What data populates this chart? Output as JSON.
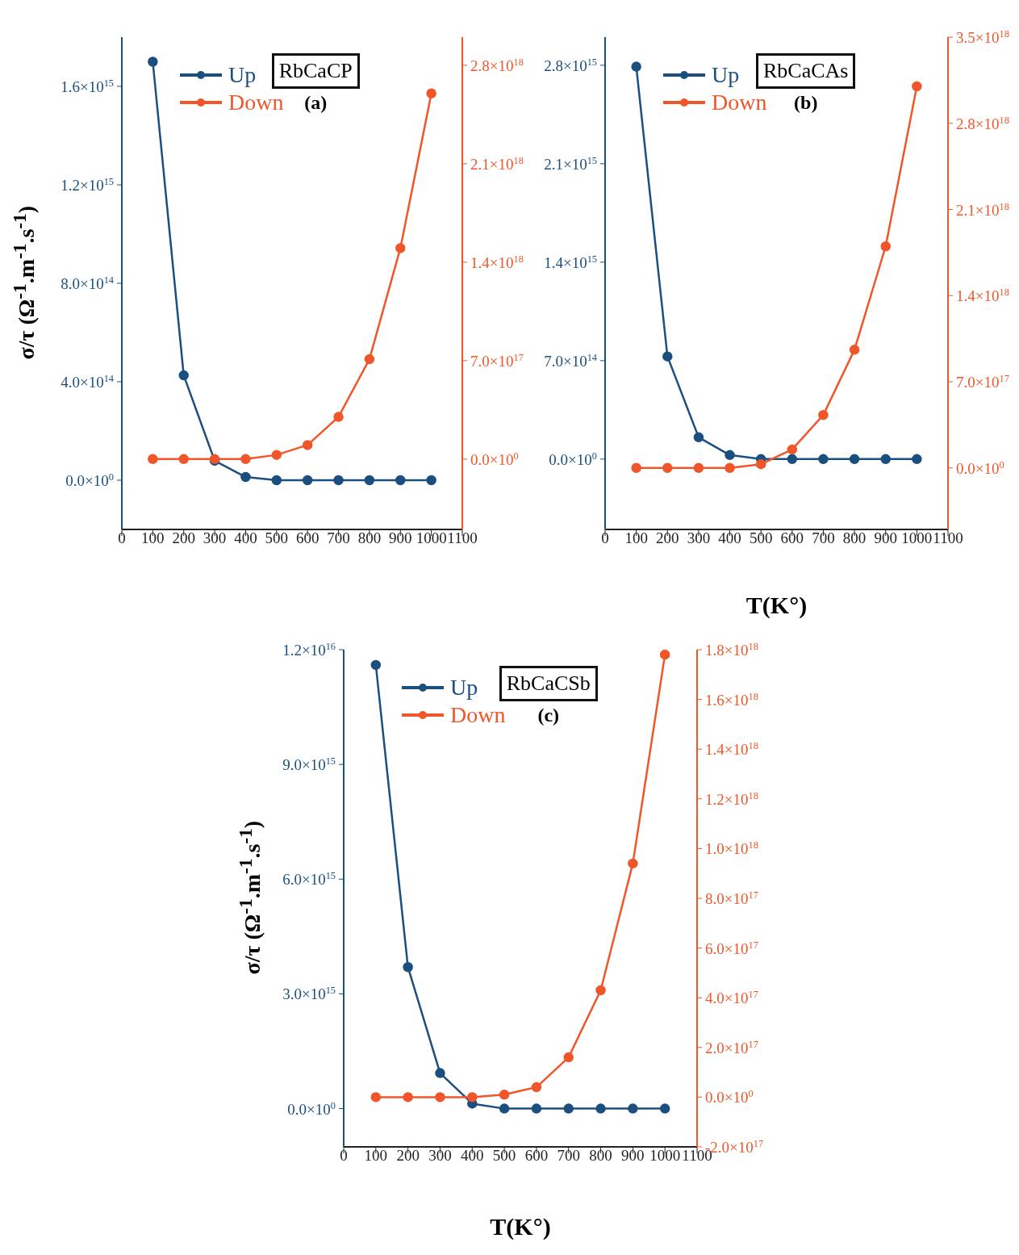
{
  "chart_data": [
    {
      "type": "line",
      "xlabel": null,
      "ylabel": "σ/τ (Ω$^{-1}$.m$^{-1}$.s$^{-1}$)",
      "annotations": [
        "RbCaCP",
        "(a)"
      ],
      "legend": "top left",
      "marker": "circle",
      "grid": false,
      "x": [
        100,
        200,
        300,
        400,
        500,
        600,
        700,
        800,
        900,
        1000
      ],
      "xlim": [
        0,
        1100
      ],
      "xticks": [
        0,
        100,
        200,
        300,
        400,
        500,
        600,
        700,
        800,
        900,
        1000,
        1100
      ],
      "ylim": [
        -200000000000000.0,
        1800000000000000.0
      ],
      "yticks": [
        {
          "value": 0,
          "label": "0.0×10$^{0}$"
        },
        {
          "value": 400000000000000.0,
          "label": "4.0×10$^{14}$"
        },
        {
          "value": 800000000000000.0,
          "label": "8.0×10$^{14}$"
        },
        {
          "value": 1200000000000000.0,
          "label": "1.2×10$^{15}$"
        },
        {
          "value": 1600000000000000.0,
          "label": "1.6×10$^{15}$"
        }
      ],
      "y2lim": [
        -5e+17,
        3e+18
      ],
      "y2ticks": [
        {
          "value": 0,
          "label": "0.0×10$^{0}$"
        },
        {
          "value": 7e+17,
          "label": "7.0×10$^{17}$"
        },
        {
          "value": 1.4e+18,
          "label": "1.4×10$^{18}$"
        },
        {
          "value": 2.1e+18,
          "label": "2.1×10$^{18}$"
        },
        {
          "value": 2.8e+18,
          "label": "2.8×10$^{18}$"
        }
      ],
      "series": [
        {
          "name": "Up",
          "color": "#1b4f80",
          "values": [
            1700000000000000.0,
            426000000000000.0,
            79000000000000.0,
            13000000000000.0,
            0,
            0,
            0,
            0,
            0,
            0
          ]
        },
        {
          "name": "Down",
          "color": "#f0562a",
          "axis": "y2",
          "values": [
            0,
            0,
            0,
            0,
            3e+16,
            1e+17,
            3e+17,
            7.1e+17,
            1.5e+18,
            2.6e+18
          ]
        }
      ]
    },
    {
      "type": "line",
      "xlabel": "T(K°)",
      "annotations": [
        "RbCaCAs",
        "(b)"
      ],
      "legend": "top left",
      "marker": "circle",
      "grid": false,
      "x": [
        100,
        200,
        300,
        400,
        500,
        600,
        700,
        800,
        900,
        1000
      ],
      "xlim": [
        0,
        1100
      ],
      "xticks": [
        0,
        100,
        200,
        300,
        400,
        500,
        600,
        700,
        800,
        900,
        1000,
        1100
      ],
      "ylim": [
        -500000000000000.0,
        3000000000000000.0
      ],
      "yticks": [
        {
          "value": 0,
          "label": "0.0×10$^{0}$"
        },
        {
          "value": 700000000000000.0,
          "label": "7.0×10$^{14}$"
        },
        {
          "value": 1400000000000000.0,
          "label": "1.4×10$^{15}$"
        },
        {
          "value": 2100000000000000.0,
          "label": "2.1×10$^{15}$"
        },
        {
          "value": 2800000000000000.0,
          "label": "2.8×10$^{15}$"
        }
      ],
      "y2lim": [
        -5e+17,
        3.5e+18
      ],
      "y2ticks": [
        {
          "value": 0,
          "label": "0.0×10$^{0}$"
        },
        {
          "value": 7e+17,
          "label": "7.0×10$^{17}$"
        },
        {
          "value": 1.4e+18,
          "label": "1.4×10$^{18}$"
        },
        {
          "value": 2.1e+18,
          "label": "2.1×10$^{18}$"
        },
        {
          "value": 2.8e+18,
          "label": "2.8×10$^{18}$"
        },
        {
          "value": 3.5e+18,
          "label": "3.5×10$^{18}$"
        }
      ],
      "series": [
        {
          "name": "Up",
          "color": "#1b4f80",
          "values": [
            2790000000000000.0,
            730000000000000.0,
            155000000000000.0,
            29000000000000.0,
            0,
            0,
            0,
            0,
            0,
            0
          ]
        },
        {
          "name": "Down",
          "color": "#f0562a",
          "axis": "y2",
          "values": [
            0,
            0,
            0,
            0,
            3e+16,
            1.5e+17,
            4.3e+17,
            9.6e+17,
            1.8e+18,
            3.1e+18
          ]
        }
      ]
    },
    {
      "type": "line",
      "xlabel": "T(K°)",
      "ylabel": "σ/τ (Ω$^{-1}$.m$^{-1}$.s$^{-1}$)",
      "annotations": [
        "RbCaCSb",
        "(c)"
      ],
      "legend": "top left",
      "marker": "circle",
      "grid": false,
      "x": [
        100,
        200,
        300,
        400,
        500,
        600,
        700,
        800,
        900,
        1000
      ],
      "xlim": [
        0,
        1100
      ],
      "xticks": [
        0,
        100,
        200,
        300,
        400,
        500,
        600,
        700,
        800,
        900,
        1000,
        1100
      ],
      "ylim": [
        -1000000000000000.0,
        1.2e+16
      ],
      "yticks": [
        {
          "value": 0,
          "label": "0.0×10$^{0}$"
        },
        {
          "value": 3000000000000000.0,
          "label": "3.0×10$^{15}$"
        },
        {
          "value": 6000000000000000.0,
          "label": "6.0×10$^{15}$"
        },
        {
          "value": 9000000000000000.0,
          "label": "9.0×10$^{15}$"
        },
        {
          "value": 1.2e+16,
          "label": "1.2×10$^{16}$"
        }
      ],
      "y2lim": [
        -2e+17,
        1.8e+18
      ],
      "y2ticks": [
        {
          "value": -2e+17,
          "label": "-2.0×10$^{17}$"
        },
        {
          "value": 0,
          "label": "0.0×10$^{0}$"
        },
        {
          "value": 2e+17,
          "label": "2.0×10$^{17}$"
        },
        {
          "value": 4e+17,
          "label": "4.0×10$^{17}$"
        },
        {
          "value": 6e+17,
          "label": "6.0×10$^{17}$"
        },
        {
          "value": 8e+17,
          "label": "8.0×10$^{17}$"
        },
        {
          "value": 1e+18,
          "label": "1.0×10$^{18}$"
        },
        {
          "value": 1.2e+18,
          "label": "1.2×10$^{18}$"
        },
        {
          "value": 1.4e+18,
          "label": "1.4×10$^{18}$"
        },
        {
          "value": 1.6e+18,
          "label": "1.6×10$^{18}$"
        },
        {
          "value": 1.8e+18,
          "label": "1.8×10$^{18}$"
        }
      ],
      "series": [
        {
          "name": "Up",
          "color": "#1b4f80",
          "values": [
            1.16e+16,
            3700000000000000.0,
            930000000000000.0,
            130000000000000.0,
            0,
            0,
            0,
            0,
            0,
            0
          ]
        },
        {
          "name": "Down",
          "color": "#f0562a",
          "axis": "y2",
          "values": [
            0,
            0,
            0,
            0,
            1e+16,
            4e+16,
            1.6e+17,
            4.3e+17,
            9.4e+17,
            1.78e+18
          ]
        }
      ]
    }
  ]
}
